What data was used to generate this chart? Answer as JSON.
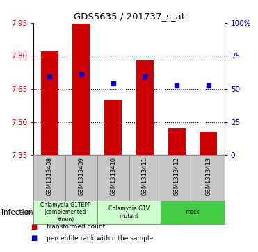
{
  "title": "GDS5635 / 201737_s_at",
  "samples": [
    "GSM1313408",
    "GSM1313409",
    "GSM1313410",
    "GSM1313411",
    "GSM1313412",
    "GSM1313413"
  ],
  "bar_bottoms": [
    7.35,
    7.35,
    7.35,
    7.35,
    7.35,
    7.35
  ],
  "bar_tops": [
    7.82,
    7.947,
    7.6,
    7.78,
    7.47,
    7.455
  ],
  "blue_y": [
    7.705,
    7.715,
    7.676,
    7.706,
    7.666,
    7.667
  ],
  "ylim": [
    7.35,
    7.95
  ],
  "yticks_left": [
    7.35,
    7.5,
    7.65,
    7.8,
    7.95
  ],
  "yticks_right_labels": [
    "0",
    "25",
    "50",
    "75",
    "100%"
  ],
  "yticks_right_values": [
    7.35,
    7.5,
    7.65,
    7.8,
    7.95
  ],
  "bar_color": "#cc0000",
  "blue_color": "#0000cc",
  "left_tick_color": "#cc0000",
  "right_tick_color": "#0000cc",
  "groups": [
    {
      "label": "Chlamydia G1TEPP\n(complemented\nstrain)",
      "start": 0,
      "end": 2,
      "color": "#ccffcc"
    },
    {
      "label": "Chlamydia G1V\nmutant",
      "start": 2,
      "end": 4,
      "color": "#ccffcc"
    },
    {
      "label": "mock",
      "start": 4,
      "end": 6,
      "color": "#44cc44"
    }
  ],
  "infection_label": "infection",
  "legend_items": [
    {
      "color": "#cc0000",
      "label": "transformed count"
    },
    {
      "color": "#0000cc",
      "label": "percentile rank within the sample"
    }
  ],
  "bar_width": 0.55,
  "grid_yticks": [
    7.5,
    7.65,
    7.8
  ]
}
